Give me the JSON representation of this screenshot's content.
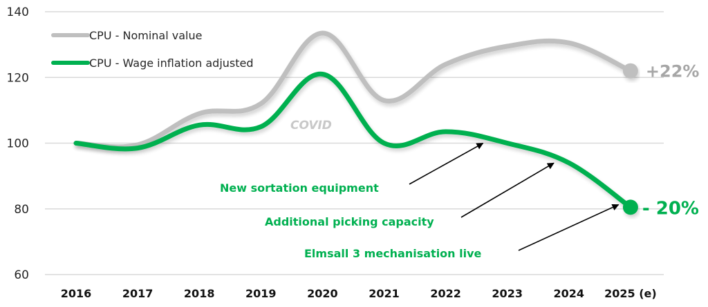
{
  "chart_data": {
    "type": "line",
    "title": "",
    "xlabel": "",
    "ylabel": "",
    "categories": [
      "2016",
      "2017",
      "2018",
      "2019",
      "2020",
      "2021",
      "2022",
      "2023",
      "2024",
      "2025 (e)"
    ],
    "ylim": [
      60,
      140
    ],
    "yticks": [
      "60",
      "80",
      "100",
      "120",
      "140"
    ],
    "ytick_values": [
      60,
      80,
      100,
      120,
      140
    ],
    "grid": true,
    "legend_position": "top-left",
    "series": [
      {
        "name": "CPU - Nominal value",
        "color": "#bfbfbf",
        "values": [
          100,
          99.5,
          109,
          112,
          133.5,
          113,
          124,
          129.5,
          130.5,
          122
        ],
        "end_marker": true,
        "end_label": "+22%"
      },
      {
        "name": "CPU - Wage inflation adjusted",
        "color": "#00b050",
        "values": [
          100,
          98.5,
          105.5,
          105,
          121,
          100,
          103.5,
          100,
          94,
          80.5
        ],
        "end_marker": true,
        "end_label": "- 20%"
      }
    ],
    "annotations": [
      {
        "text": "COVID",
        "style": "grey-italic",
        "near_category": "2020"
      },
      {
        "text": "New sortation equipment",
        "style": "green",
        "arrow_to": {
          "category_index": 6.65,
          "series": 1
        }
      },
      {
        "text": "Additional picking capacity",
        "style": "green",
        "arrow_to": {
          "category_index": 7.8,
          "series": 1
        }
      },
      {
        "text": "Elmsall 3 mechanisation live",
        "style": "green",
        "arrow_to": {
          "category_index": 8.85,
          "series": 1
        }
      }
    ]
  }
}
